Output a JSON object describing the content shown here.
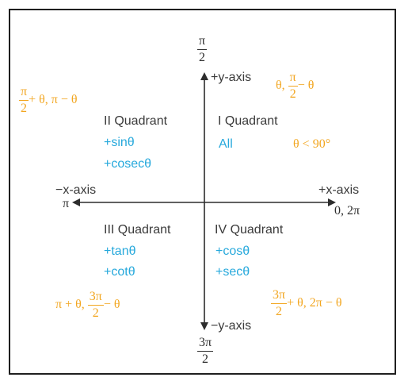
{
  "axes": {
    "pos_y_label": "+y-axis",
    "neg_y_label": "−y-axis",
    "pos_x_label": "+x-axis",
    "neg_x_label": "−x-axis",
    "top_angle": {
      "num": "π",
      "den": "2"
    },
    "bottom_angle": {
      "num": "3π",
      "den": "2"
    },
    "left_angle": "π",
    "right_angle": "0, 2π"
  },
  "quadrants": {
    "first": {
      "title": "I Quadrant",
      "positive": "All",
      "condition": "θ < 90°",
      "angles": {
        "prefix": "θ, ",
        "num": "π",
        "den": "2",
        "suffix": "− θ"
      }
    },
    "second": {
      "title": "II Quadrant",
      "positive": [
        "+sinθ",
        "+cosecθ"
      ],
      "angles": {
        "num": "π",
        "den": "2",
        "suffix": "+ θ, π − θ"
      }
    },
    "third": {
      "title": "III Quadrant",
      "positive": [
        "+tanθ",
        "+cotθ"
      ],
      "angles": {
        "prefix": "π + θ, ",
        "num": "3π",
        "den": "2",
        "suffix": "− θ"
      }
    },
    "fourth": {
      "title": "IV Quadrant",
      "positive": [
        "+cosθ",
        "+secθ"
      ],
      "angles": {
        "num": "3π",
        "den": "2",
        "suffix": "+ θ, 2π − θ"
      }
    }
  },
  "colors": {
    "positive_functions": "#27a9dc",
    "angle_expressions": "#f2a620",
    "text": "#3a3a3a",
    "axes": "#2d2d2d"
  }
}
